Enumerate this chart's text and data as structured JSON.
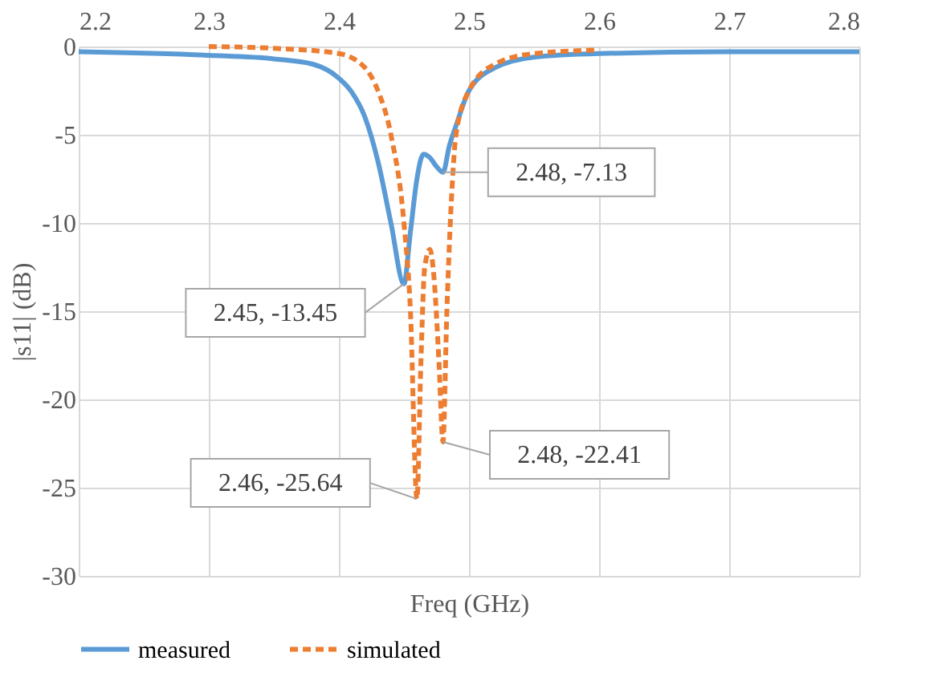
{
  "chart_data": {
    "type": "line",
    "xlabel": "Freq (GHz)",
    "ylabel": "|s11| (dB)",
    "xlim": [
      2.2,
      2.8
    ],
    "xticks": [
      2.2,
      2.3,
      2.4,
      2.5,
      2.6,
      2.7,
      2.8
    ],
    "ylim": [
      -30,
      0
    ],
    "yticks": [
      -30,
      -25,
      -20,
      -15,
      -10,
      -5,
      0
    ],
    "grid": true,
    "legend": "bottom",
    "marker": "none",
    "series": [
      {
        "name": "measured",
        "color": "#5b9bd5",
        "line_style": "solid",
        "x": [
          2.2,
          2.3,
          2.35,
          2.38,
          2.4,
          2.41,
          2.42,
          2.43,
          2.44,
          2.45,
          2.455,
          2.46,
          2.465,
          2.47,
          2.475,
          2.48,
          2.485,
          2.49,
          2.5,
          2.52,
          2.55,
          2.6,
          2.7,
          2.8
        ],
        "values": [
          -0.3,
          -0.5,
          -0.7,
          -1.0,
          -1.8,
          -2.6,
          -4.0,
          -6.5,
          -10.0,
          -13.45,
          -10.5,
          -7.5,
          -6.1,
          -6.3,
          -6.8,
          -7.13,
          -5.6,
          -4.5,
          -2.5,
          -1.2,
          -0.6,
          -0.4,
          -0.3,
          -0.3
        ]
      },
      {
        "name": "simulated",
        "color": "#ed7d31",
        "line_style": "dashed",
        "x": [
          2.3,
          2.35,
          2.4,
          2.42,
          2.43,
          2.44,
          2.45,
          2.455,
          2.46,
          2.463,
          2.466,
          2.47,
          2.473,
          2.477,
          2.48,
          2.483,
          2.487,
          2.49,
          2.5,
          2.52,
          2.55,
          2.6
        ],
        "values": [
          0,
          -0.1,
          -0.4,
          -1.2,
          -2.5,
          -5.0,
          -10.0,
          -15.0,
          -25.64,
          -18.0,
          -12.5,
          -11.5,
          -13.0,
          -18.0,
          -22.41,
          -15.0,
          -8.0,
          -5.0,
          -2.5,
          -1.0,
          -0.4,
          -0.2
        ]
      }
    ],
    "annotations": [
      {
        "text": "2.45, -13.45",
        "x": 2.45,
        "y": -13.45
      },
      {
        "text": "2.48, -7.13",
        "x": 2.48,
        "y": -7.13
      },
      {
        "text": "2.48, -22.41",
        "x": 2.48,
        "y": -22.41
      },
      {
        "text": "2.46, -25.64",
        "x": 2.46,
        "y": -25.64
      }
    ]
  }
}
